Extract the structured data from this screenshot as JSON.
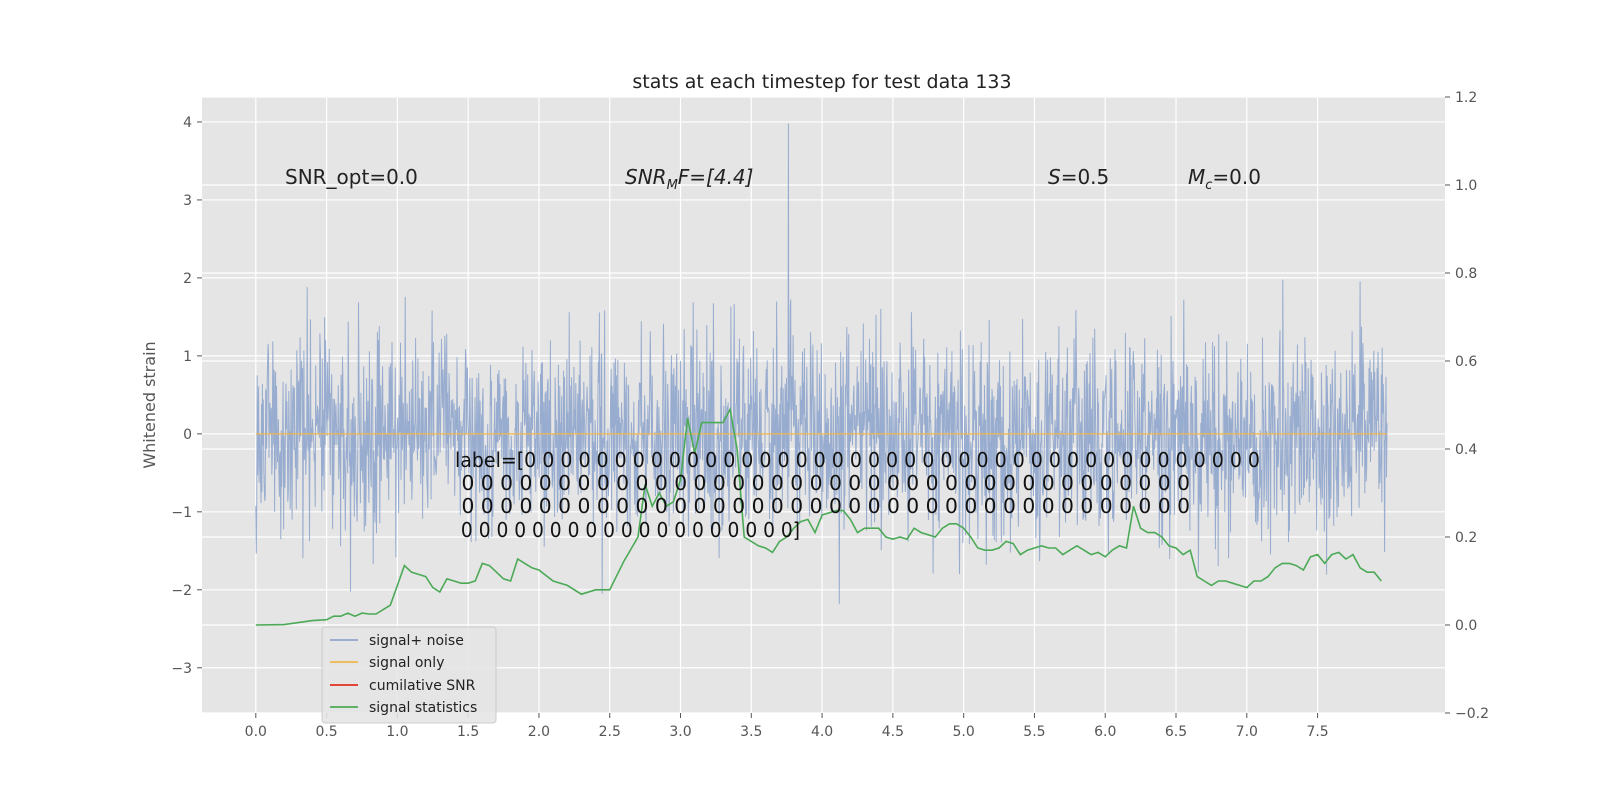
{
  "chart_data": {
    "type": "line",
    "title": "stats at each timestep for test data 133",
    "ylabel": "Whitened strain",
    "xlabel": "",
    "xlim": [
      -0.38,
      8.4
    ],
    "ylim": [
      -3.58,
      4.32
    ],
    "y2lim": [
      -0.2,
      1.2
    ],
    "x_ticks": [
      "0.0",
      "0.5",
      "1.0",
      "1.5",
      "2.0",
      "2.5",
      "3.0",
      "3.5",
      "4.0",
      "4.5",
      "5.0",
      "5.5",
      "6.0",
      "6.5",
      "7.0",
      "7.5"
    ],
    "y_ticks": [
      "−3",
      "−2",
      "−1",
      "0",
      "1",
      "2",
      "3",
      "4"
    ],
    "y2_ticks": [
      "−0.2",
      "0.0",
      "0.2",
      "0.4",
      "0.6",
      "0.8",
      "1.0",
      "1.2"
    ],
    "series": [
      {
        "name": "signal+ noise",
        "color": "#8fa5cc",
        "axis": "left",
        "note": "dense whitened noise, 0 to 8 s, roughly within -3.2..4.0"
      },
      {
        "name": "signal only",
        "color": "#f0b64d",
        "axis": "left",
        "values_constant": 0.0
      },
      {
        "name": "cumilative SNR",
        "color": "#e0301e",
        "axis": "right",
        "values": []
      },
      {
        "name": "signal statistics",
        "color": "#4caa57",
        "axis": "right",
        "x": [
          0.0,
          0.2,
          0.4,
          0.5,
          0.55,
          0.6,
          0.65,
          0.7,
          0.75,
          0.8,
          0.85,
          0.9,
          0.95,
          1.0,
          1.05,
          1.1,
          1.15,
          1.2,
          1.25,
          1.3,
          1.35,
          1.4,
          1.45,
          1.5,
          1.55,
          1.6,
          1.65,
          1.7,
          1.75,
          1.8,
          1.85,
          1.9,
          1.95,
          2.0,
          2.1,
          2.2,
          2.3,
          2.4,
          2.5,
          2.6,
          2.7,
          2.75,
          2.8,
          2.85,
          2.9,
          2.95,
          3.0,
          3.05,
          3.1,
          3.15,
          3.2,
          3.25,
          3.3,
          3.35,
          3.4,
          3.45,
          3.5,
          3.55,
          3.6,
          3.65,
          3.7,
          3.75,
          3.8,
          3.85,
          3.9,
          3.95,
          4.0,
          4.05,
          4.1,
          4.15,
          4.2,
          4.25,
          4.3,
          4.35,
          4.4,
          4.45,
          4.5,
          4.55,
          4.6,
          4.65,
          4.7,
          4.75,
          4.8,
          4.85,
          4.9,
          4.95,
          5.0,
          5.05,
          5.1,
          5.15,
          5.2,
          5.25,
          5.3,
          5.35,
          5.4,
          5.45,
          5.5,
          5.55,
          5.6,
          5.65,
          5.7,
          5.75,
          5.8,
          5.85,
          5.9,
          5.95,
          6.0,
          6.05,
          6.1,
          6.15,
          6.2,
          6.25,
          6.3,
          6.35,
          6.4,
          6.45,
          6.5,
          6.55,
          6.6,
          6.65,
          6.7,
          6.75,
          6.8,
          6.85,
          6.9,
          6.95,
          7.0,
          7.05,
          7.1,
          7.15,
          7.2,
          7.25,
          7.3,
          7.35,
          7.4,
          7.45,
          7.5,
          7.55,
          7.6,
          7.65,
          7.7,
          7.75,
          7.8,
          7.85,
          7.9,
          7.95
        ],
        "values": [
          0.0,
          0.001,
          0.01,
          0.012,
          0.02,
          0.02,
          0.027,
          0.02,
          0.027,
          0.025,
          0.025,
          0.035,
          0.045,
          0.09,
          0.135,
          0.12,
          0.115,
          0.11,
          0.085,
          0.075,
          0.105,
          0.1,
          0.095,
          0.095,
          0.1,
          0.14,
          0.135,
          0.12,
          0.105,
          0.1,
          0.15,
          0.14,
          0.13,
          0.125,
          0.1,
          0.09,
          0.07,
          0.08,
          0.08,
          0.145,
          0.2,
          0.32,
          0.27,
          0.3,
          0.27,
          0.28,
          0.33,
          0.47,
          0.39,
          0.46,
          0.46,
          0.46,
          0.46,
          0.49,
          0.4,
          0.2,
          0.19,
          0.18,
          0.175,
          0.165,
          0.19,
          0.2,
          0.22,
          0.235,
          0.24,
          0.21,
          0.25,
          0.255,
          0.26,
          0.26,
          0.24,
          0.21,
          0.22,
          0.22,
          0.22,
          0.2,
          0.195,
          0.2,
          0.195,
          0.22,
          0.21,
          0.205,
          0.2,
          0.22,
          0.23,
          0.23,
          0.22,
          0.2,
          0.175,
          0.17,
          0.17,
          0.175,
          0.19,
          0.185,
          0.16,
          0.17,
          0.175,
          0.18,
          0.175,
          0.175,
          0.16,
          0.17,
          0.18,
          0.17,
          0.16,
          0.165,
          0.155,
          0.17,
          0.18,
          0.175,
          0.27,
          0.22,
          0.21,
          0.21,
          0.2,
          0.18,
          0.175,
          0.16,
          0.17,
          0.11,
          0.1,
          0.09,
          0.1,
          0.1,
          0.095,
          0.09,
          0.085,
          0.1,
          0.1,
          0.11,
          0.13,
          0.14,
          0.14,
          0.135,
          0.125,
          0.155,
          0.16,
          0.14,
          0.16,
          0.165,
          0.15,
          0.16,
          0.13,
          0.12,
          0.12,
          0.1
        ]
      }
    ],
    "annotations": {
      "snr_opt": "SNR_opt=0.0",
      "snr_mf_main": "SNR",
      "snr_mf_sub": "M",
      "snr_mf_rest": "F=[4.4]",
      "s_var": "S",
      "s_value": "=0.5",
      "mc_var": "M",
      "mc_sub": "c",
      "mc_value": "=0.0",
      "label_lines": [
        "label=[0 0 0 0 0 0 0 0 0 0 0 0 0 0 0 0 0 0 0 0 0 0 0 0 0 0 0 0 0 0 0 0 0 0 0 0 0 0 0 0 0",
        " 0 0 0 0 0 0 0 0 0 0 0 0 0 0 0 0 0 0 0 0 0 0 0 0 0 0 0 0 0 0 0 0 0 0 0 0 0 0",
        " 0 0 0 0 0 0 0 0 0 0 0 0 0 0 0 0 0 0 0 0 0 0 0 0 0 0 0 0 0 0 0 0 0 0 0 0 0 0",
        " 0 0 0 0 0 0 0 0 0 0 0 0 0 0 0 0 0 0 0]"
      ]
    },
    "legend": {
      "position": "lower-left",
      "entries": [
        "signal+ noise",
        "signal only",
        "cumilative SNR",
        "signal statistics"
      ]
    },
    "colors": {
      "background": "#e5e5e5",
      "grid": "#ffffff"
    }
  }
}
